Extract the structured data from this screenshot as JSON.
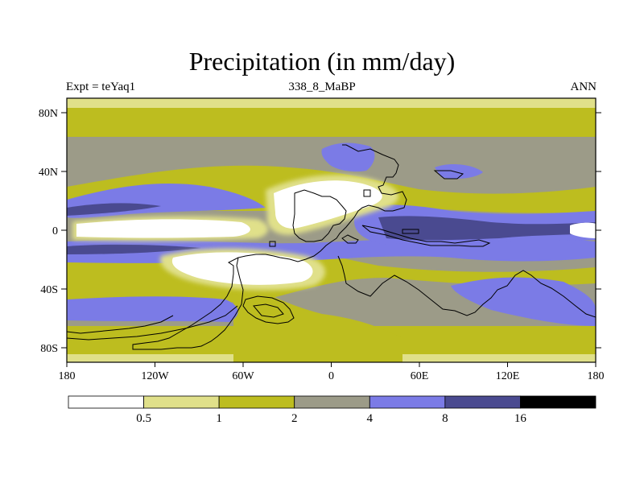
{
  "title": "Precipitation (in mm/day)",
  "subtitle_left": "Expt = teYaq1",
  "subtitle_center": "338_8_MaBP",
  "subtitle_right": "ANN",
  "lat_ticks": [
    "80N",
    "40N",
    "0",
    "40S",
    "80S"
  ],
  "lon_ticks": [
    "180",
    "120W",
    "60W",
    "0",
    "60E",
    "120E",
    "180"
  ],
  "colorbar": {
    "labels": [
      "0.5",
      "1",
      "2",
      "4",
      "8",
      "16"
    ],
    "colors": [
      "#ffffff",
      "#e0e08a",
      "#bdbd1f",
      "#9c9b88",
      "#7b7be6",
      "#4a4a90",
      "#000000"
    ]
  }
}
